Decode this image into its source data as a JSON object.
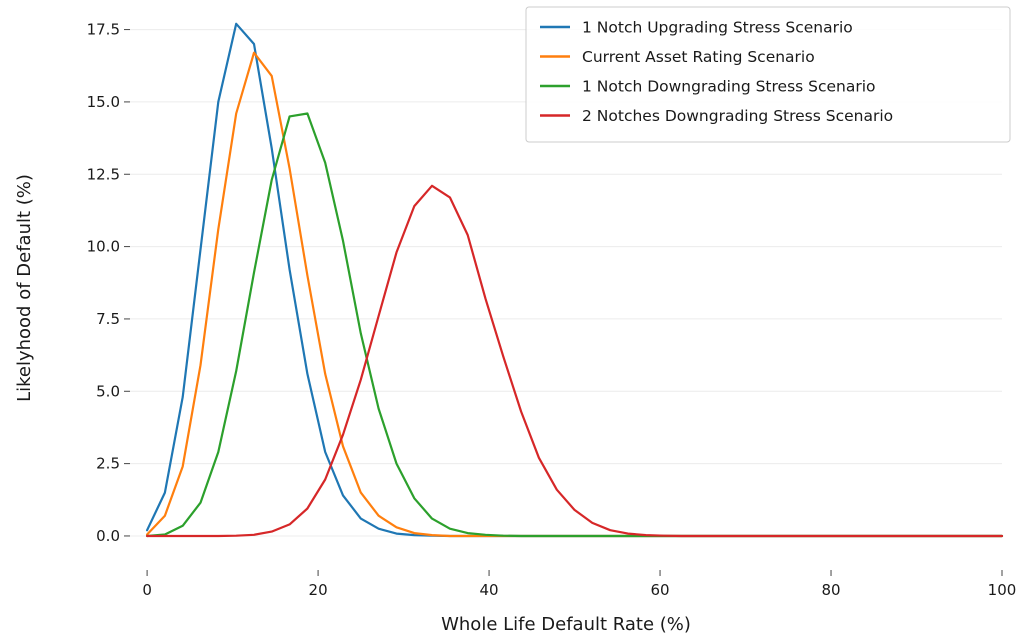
{
  "chart_data": {
    "type": "line",
    "title": "",
    "xlabel": "Whole Life Default Rate (%)",
    "ylabel": "Likelyhood of Default (%)",
    "xlim": [
      -2,
      100
    ],
    "ylim": [
      -0.9,
      17.9
    ],
    "grid": "horizontal",
    "legend_position": "top-right",
    "x_ticks": [
      {
        "value": 0,
        "label": "0"
      },
      {
        "value": 20,
        "label": "20"
      },
      {
        "value": 40,
        "label": "40"
      },
      {
        "value": 60,
        "label": "60"
      },
      {
        "value": 80,
        "label": "80"
      },
      {
        "value": 100,
        "label": "100"
      }
    ],
    "y_ticks": [
      {
        "value": 0.0,
        "label": "0.0"
      },
      {
        "value": 2.5,
        "label": "2.5"
      },
      {
        "value": 5.0,
        "label": "5.0"
      },
      {
        "value": 7.5,
        "label": "7.5"
      },
      {
        "value": 10.0,
        "label": "10.0"
      },
      {
        "value": 12.5,
        "label": "12.5"
      },
      {
        "value": 15.0,
        "label": "15.0"
      },
      {
        "value": 17.5,
        "label": "17.5"
      }
    ],
    "x": [
      0,
      2.08,
      4.17,
      6.25,
      8.33,
      10.42,
      12.5,
      14.58,
      16.67,
      18.75,
      20.83,
      22.92,
      25.0,
      27.08,
      29.17,
      31.25,
      33.33,
      35.42,
      37.5,
      39.58,
      41.67,
      43.75,
      45.83,
      47.92,
      50.0,
      52.08,
      54.17,
      56.25,
      58.33,
      60.42,
      62.5,
      100
    ],
    "series": [
      {
        "name": "1 Notch Upgrading Stress Scenario",
        "color": "#1f77b4",
        "values": [
          0.2,
          1.5,
          4.8,
          9.9,
          15.0,
          17.7,
          17.0,
          13.4,
          9.2,
          5.6,
          2.9,
          1.4,
          0.6,
          0.25,
          0.08,
          0.03,
          0.01,
          0.0,
          0.0,
          0.0,
          0.0,
          0.0,
          0.0,
          0.0,
          0.0,
          0.0,
          0.0,
          0.0,
          0.0,
          0.0,
          0.0,
          0.0
        ]
      },
      {
        "name": "Current Asset Rating Scenario",
        "color": "#ff7f0e",
        "values": [
          0.05,
          0.7,
          2.4,
          5.9,
          10.6,
          14.6,
          16.7,
          15.9,
          12.7,
          9.0,
          5.6,
          3.1,
          1.5,
          0.7,
          0.3,
          0.1,
          0.03,
          0.0,
          0.0,
          0.0,
          0.0,
          0.0,
          0.0,
          0.0,
          0.0,
          0.0,
          0.0,
          0.0,
          0.0,
          0.0,
          0.0,
          0.0
        ]
      },
      {
        "name": "1 Notch Downgrading Stress Scenario",
        "color": "#2ca02c",
        "values": [
          0.0,
          0.05,
          0.35,
          1.15,
          2.9,
          5.7,
          9.1,
          12.3,
          14.5,
          14.6,
          12.9,
          10.2,
          7.0,
          4.4,
          2.5,
          1.3,
          0.6,
          0.25,
          0.1,
          0.04,
          0.01,
          0.0,
          0.0,
          0.0,
          0.0,
          0.0,
          0.0,
          0.0,
          0.0,
          0.0,
          0.0,
          0.0
        ]
      },
      {
        "name": "2 Notches Downgrading Stress Scenario",
        "color": "#d62728",
        "values": [
          0.0,
          0.0,
          0.0,
          0.0,
          0.0,
          0.01,
          0.04,
          0.15,
          0.4,
          0.95,
          1.95,
          3.5,
          5.4,
          7.6,
          9.8,
          11.4,
          12.1,
          11.7,
          10.4,
          8.2,
          6.2,
          4.3,
          2.7,
          1.6,
          0.9,
          0.45,
          0.2,
          0.08,
          0.03,
          0.01,
          0.0,
          0.0
        ]
      }
    ]
  }
}
